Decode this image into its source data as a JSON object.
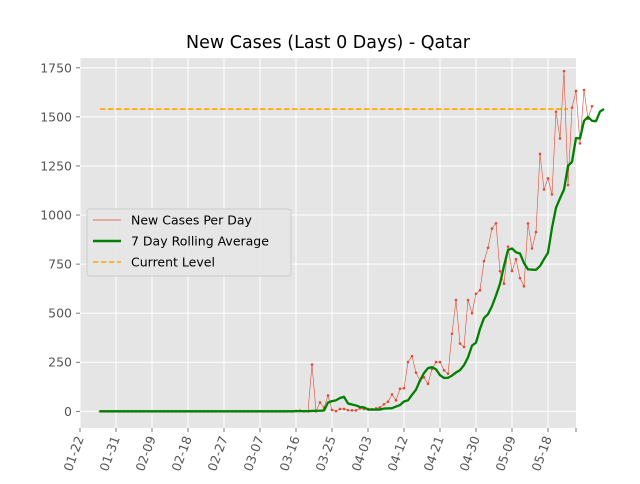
{
  "chart_data": {
    "type": "line",
    "title": "New Cases (Last 0 Days) - Qatar",
    "xlabel": "",
    "ylabel": "",
    "x_start": "01-27",
    "xlim": [
      "01-22",
      "05-25"
    ],
    "ylim": [
      -85,
      1800
    ],
    "x_ticks": [
      "01-22",
      "01-31",
      "02-09",
      "02-18",
      "02-27",
      "03-07",
      "03-16",
      "03-25",
      "04-03",
      "04-12",
      "04-21",
      "04-30",
      "05-09",
      "05-18"
    ],
    "y_ticks": [
      0,
      250,
      500,
      750,
      1000,
      1250,
      1500,
      1750
    ],
    "grid": true,
    "legend_position": "center-left",
    "colors": {
      "daily": "#e24a33",
      "rolling": "#008000",
      "current": "#ffa500",
      "background": "#e5e5e5"
    },
    "series": [
      {
        "name": "New Cases Per Day",
        "kind": "daily",
        "values": [
          0,
          0,
          0,
          0,
          0,
          0,
          0,
          0,
          0,
          0,
          0,
          0,
          0,
          0,
          0,
          0,
          0,
          0,
          0,
          0,
          0,
          0,
          0,
          0,
          0,
          0,
          0,
          0,
          0,
          0,
          0,
          0,
          0,
          0,
          0,
          0,
          0,
          0,
          0,
          0,
          0,
          0,
          0,
          0,
          0,
          0,
          0,
          1,
          0,
          2,
          3,
          0,
          0,
          238,
          0,
          45,
          18,
          81,
          7,
          1,
          12,
          12,
          6,
          5,
          5,
          15,
          12,
          12,
          10,
          15,
          20,
          36,
          49,
          86,
          56,
          115,
          118,
          251,
          281,
          197,
          155,
          173,
          140,
          216,
          251,
          251,
          209,
          192,
          395,
          567,
          345,
          328,
          567,
          500,
          599,
          617,
          765,
          833,
          931,
          958,
          714,
          650,
          839,
          715,
          775,
          679,
          637,
          957,
          830,
          913,
          1311,
          1130,
          1187,
          1105,
          1526,
          1390,
          1733,
          1153,
          1547,
          1632,
          1365,
          1637,
          1491,
          1554
        ]
      },
      {
        "name": "7 Day Rolling Average",
        "kind": "rolling",
        "values": [
          0,
          0,
          0,
          0,
          0,
          0,
          0,
          0,
          0,
          0,
          0,
          0,
          0,
          0,
          0,
          0,
          0,
          0,
          0,
          0,
          0,
          0,
          0,
          0,
          0,
          0,
          0,
          0,
          0,
          0,
          0,
          0,
          0,
          0,
          0,
          0,
          0,
          0,
          0,
          0,
          0,
          0,
          0,
          0,
          0,
          0,
          0,
          0,
          0,
          1,
          1,
          1,
          1,
          2,
          3,
          3,
          4,
          45,
          52,
          56,
          68,
          74,
          40,
          35,
          30,
          22,
          20,
          9,
          9,
          9,
          9,
          14,
          15,
          16,
          24,
          32,
          50,
          56,
          84,
          110,
          157,
          195,
          220,
          225,
          214,
          184,
          170,
          171,
          182,
          198,
          210,
          235,
          275,
          335,
          350,
          420,
          475,
          495,
          536,
          590,
          650,
          741,
          822,
          830,
          810,
          804,
          755,
          723,
          722,
          721,
          740,
          775,
          808,
          935,
          1037,
          1085,
          1130,
          1250,
          1271,
          1392,
          1390,
          1480,
          1500,
          1480,
          1478,
          1527,
          1540
        ]
      },
      {
        "name": "Current Level",
        "kind": "current",
        "value": 1540,
        "x_range": [
          "01-27",
          "05-23"
        ]
      }
    ]
  }
}
